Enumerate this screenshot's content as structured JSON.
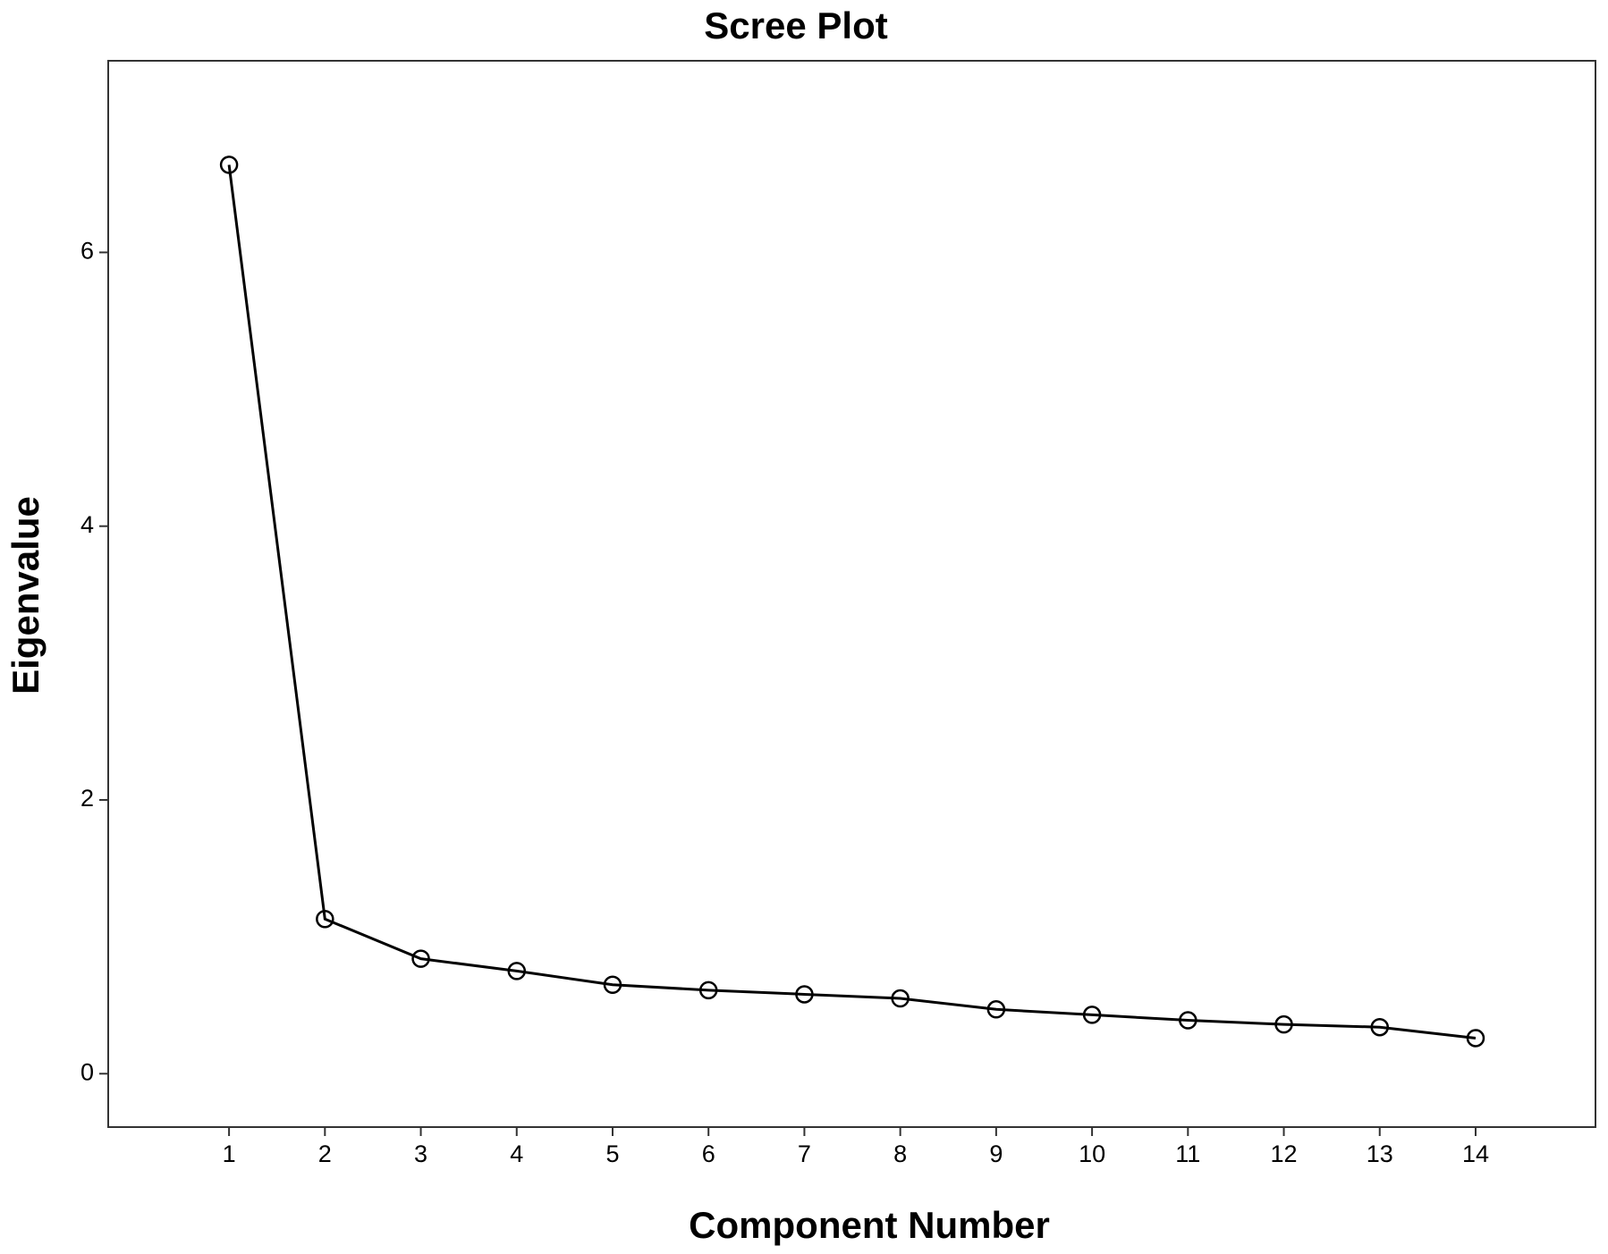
{
  "chart_data": {
    "type": "line",
    "title": "Scree Plot",
    "x_label": "Component Number",
    "y_label": "Eigenvalue",
    "x": [
      1,
      2,
      3,
      4,
      5,
      6,
      7,
      8,
      9,
      10,
      11,
      12,
      13,
      14
    ],
    "series": [
      {
        "color": "#000000",
        "values": [
          6.64,
          1.13,
          0.84,
          0.75,
          0.65,
          0.61,
          0.58,
          0.55,
          0.47,
          0.43,
          0.39,
          0.36,
          0.34,
          0.26
        ]
      }
    ],
    "xlim": [
      -0.26,
      15.25
    ],
    "xticks": [
      1,
      2,
      3,
      4,
      5,
      6,
      7,
      8,
      9,
      10,
      11,
      12,
      13,
      14
    ],
    "ylim": [
      -0.39,
      7.4
    ],
    "yticks": [
      0,
      2,
      4,
      6
    ],
    "grid": false
  }
}
